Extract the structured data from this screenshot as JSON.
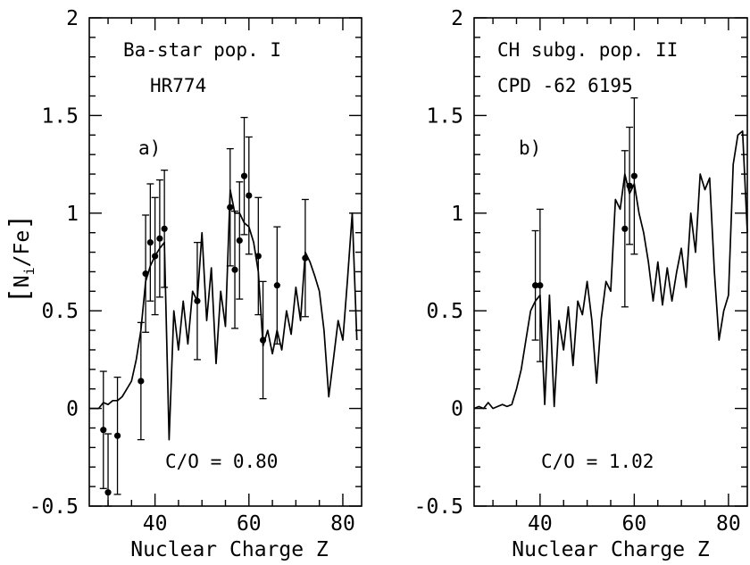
{
  "chart_data": [
    {
      "type": "line",
      "panel_label": "a)",
      "annotations": [
        "Ba-star pop. I",
        "HR774",
        "C/O = 0.80"
      ],
      "xlabel": "Nuclear Charge Z",
      "ylabel": "[N_i/Fe]",
      "ylabel_parts": {
        "open": "[",
        "main": "N",
        "sub": "i",
        "rest": "/Fe",
        "close": "]"
      },
      "xlim": [
        26,
        84
      ],
      "ylim": [
        -0.5,
        2
      ],
      "xticks": [
        40,
        60,
        80
      ],
      "yticks": [
        -0.5,
        0,
        0.5,
        1,
        1.5,
        2
      ],
      "xtick_labels": [
        "40",
        "60",
        "80"
      ],
      "ytick_labels": [
        "-0.5",
        "0",
        "0.5",
        "1",
        "1.5",
        "2"
      ],
      "series": [
        {
          "kind": "model",
          "x": [
            26,
            27,
            28,
            29,
            30,
            31,
            32,
            33,
            34,
            35,
            36,
            37,
            38,
            39,
            40,
            41,
            42,
            43,
            44,
            45,
            46,
            47,
            48,
            49,
            50,
            51,
            52,
            53,
            54,
            55,
            56,
            57,
            58,
            59,
            60,
            61,
            62,
            63,
            64,
            65,
            66,
            67,
            68,
            69,
            70,
            71,
            72,
            73,
            74,
            75,
            76,
            77,
            78,
            79,
            80,
            81,
            82,
            83
          ],
          "y": [
            0.0,
            0.0,
            0.0,
            0.03,
            0.02,
            0.04,
            0.04,
            0.06,
            0.1,
            0.14,
            0.25,
            0.4,
            0.65,
            0.73,
            0.78,
            0.82,
            0.85,
            -0.16,
            0.5,
            0.3,
            0.55,
            0.33,
            0.6,
            0.55,
            0.9,
            0.45,
            0.72,
            0.23,
            0.6,
            0.42,
            1.12,
            1.0,
            1.0,
            0.95,
            0.93,
            0.85,
            0.7,
            0.32,
            0.4,
            0.28,
            0.4,
            0.3,
            0.5,
            0.38,
            0.62,
            0.45,
            0.8,
            0.75,
            0.68,
            0.6,
            0.4,
            0.06,
            0.25,
            0.45,
            0.35,
            0.66,
            1.0,
            0.35
          ]
        },
        {
          "kind": "observed",
          "x": [
            29,
            30,
            32,
            37,
            38,
            39,
            40,
            41,
            42,
            49,
            56,
            57,
            58,
            59,
            60,
            62,
            63,
            66,
            72
          ],
          "y": [
            -0.11,
            -0.43,
            -0.14,
            0.14,
            0.69,
            0.85,
            0.78,
            0.87,
            0.92,
            0.55,
            1.03,
            0.71,
            0.86,
            1.19,
            1.09,
            0.78,
            0.35,
            0.63,
            0.77
          ],
          "err": [
            0.3,
            0.3,
            0.3,
            0.3,
            0.3,
            0.3,
            0.3,
            0.3,
            0.3,
            0.3,
            0.3,
            0.3,
            0.3,
            0.3,
            0.3,
            0.3,
            0.3,
            0.3,
            0.3
          ]
        }
      ]
    },
    {
      "type": "line",
      "panel_label": "b)",
      "annotations": [
        "CH subg. pop. II",
        "CPD -62 6195",
        "C/O = 1.02"
      ],
      "xlabel": "Nuclear Charge Z",
      "ylabel": "",
      "xlim": [
        26,
        84
      ],
      "ylim": [
        -0.5,
        2
      ],
      "xticks": [
        40,
        60,
        80
      ],
      "yticks": [
        -0.5,
        0,
        0.5,
        1,
        1.5,
        2
      ],
      "xtick_labels": [
        "40",
        "60",
        "80"
      ],
      "ytick_labels": [
        "-0.5",
        "0",
        "0.5",
        "1",
        "1.5",
        "2"
      ],
      "series": [
        {
          "kind": "model",
          "x": [
            26,
            27,
            28,
            29,
            30,
            31,
            32,
            33,
            34,
            35,
            36,
            37,
            38,
            39,
            40,
            41,
            42,
            43,
            44,
            45,
            46,
            47,
            48,
            49,
            50,
            51,
            52,
            53,
            54,
            55,
            56,
            57,
            58,
            59,
            60,
            61,
            62,
            63,
            64,
            65,
            66,
            67,
            68,
            69,
            70,
            71,
            72,
            73,
            74,
            75,
            76,
            77,
            78,
            79,
            80,
            81,
            82,
            83,
            84
          ],
          "y": [
            0.0,
            0.01,
            0.0,
            0.03,
            0.0,
            0.01,
            0.02,
            0.01,
            0.02,
            0.1,
            0.2,
            0.35,
            0.5,
            0.55,
            0.58,
            0.02,
            0.58,
            0.01,
            0.45,
            0.3,
            0.52,
            0.22,
            0.55,
            0.48,
            0.65,
            0.45,
            0.13,
            0.46,
            0.65,
            0.6,
            1.07,
            1.02,
            1.2,
            1.1,
            1.15,
            1.0,
            0.9,
            0.75,
            0.55,
            0.75,
            0.53,
            0.72,
            0.55,
            0.7,
            0.82,
            0.62,
            1.0,
            0.8,
            1.2,
            1.12,
            1.18,
            0.7,
            0.35,
            0.5,
            0.58,
            1.25,
            1.4,
            1.42,
            0.9
          ]
        },
        {
          "kind": "observed",
          "x": [
            39,
            40,
            58,
            59,
            60
          ],
          "y": [
            0.63,
            0.63,
            0.92,
            1.14,
            1.19
          ],
          "err": [
            0.28,
            0.39,
            0.4,
            0.3,
            0.4
          ]
        }
      ]
    }
  ]
}
